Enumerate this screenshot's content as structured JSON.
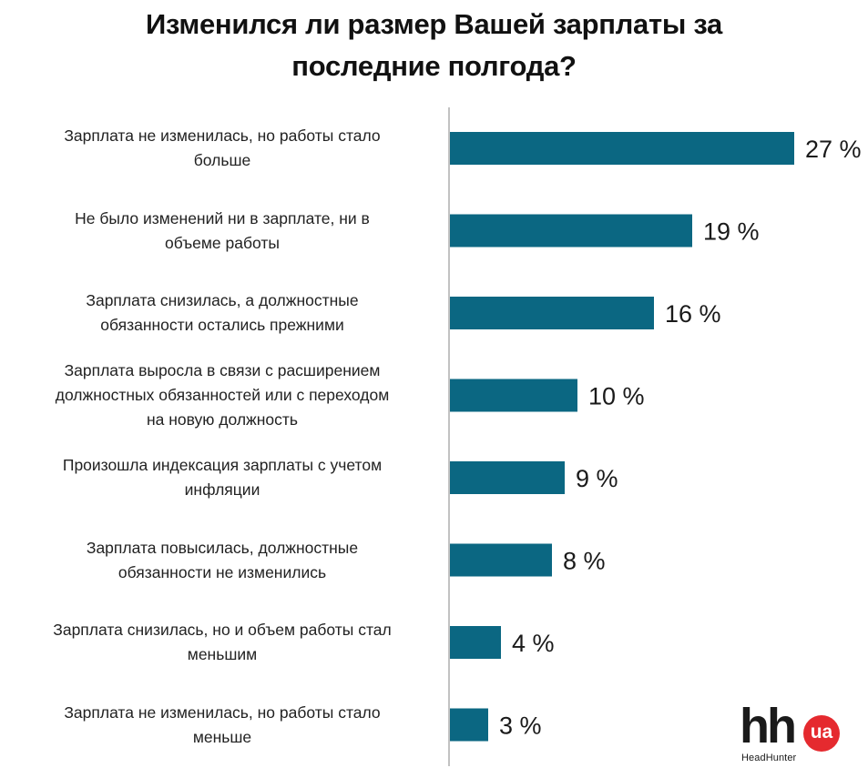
{
  "chart_data": {
    "type": "bar",
    "orientation": "horizontal",
    "title": "Изменился ли размер Вашей зарплаты за последние полгода?",
    "title_lines": [
      "Изменился ли размер Вашей зарплаты за",
      "последние полгода?"
    ],
    "categories": [
      [
        "Зарплата не изменилась, но работы стало",
        "больше"
      ],
      [
        "Не было изменений ни в зарплате, ни в",
        "объеме работы"
      ],
      [
        "Зарплата снизилась, а должностные",
        "обязанности остались прежними"
      ],
      [
        "Зарплата выросла в связи с расширением",
        "должностных обязанностей или с переходом",
        "на новую должность"
      ],
      [
        "Произошла индексация зарплаты с учетом",
        "инфляции"
      ],
      [
        "Зарплата повысилась, должностные",
        "обязанности не изменились"
      ],
      [
        "Зарплата снизилась, но и объем работы стал",
        "меньшим"
      ],
      [
        "Зарплата не изменилась, но работы стало",
        "меньше"
      ]
    ],
    "values": [
      27,
      19,
      16,
      10,
      9,
      8,
      4,
      3
    ],
    "value_labels": [
      "27 %",
      "19 %",
      "16 %",
      "10 %",
      "9 %",
      "8 %",
      "4 %",
      "3 %"
    ],
    "unit": "%",
    "xlabel": "",
    "ylabel": "",
    "grid": false,
    "legend": "none",
    "bar_color": "#0b6782"
  },
  "logo": {
    "mark": "hh",
    "badge": "ua",
    "name": "HeadHunter",
    "badge_color": "#e52a2f"
  }
}
